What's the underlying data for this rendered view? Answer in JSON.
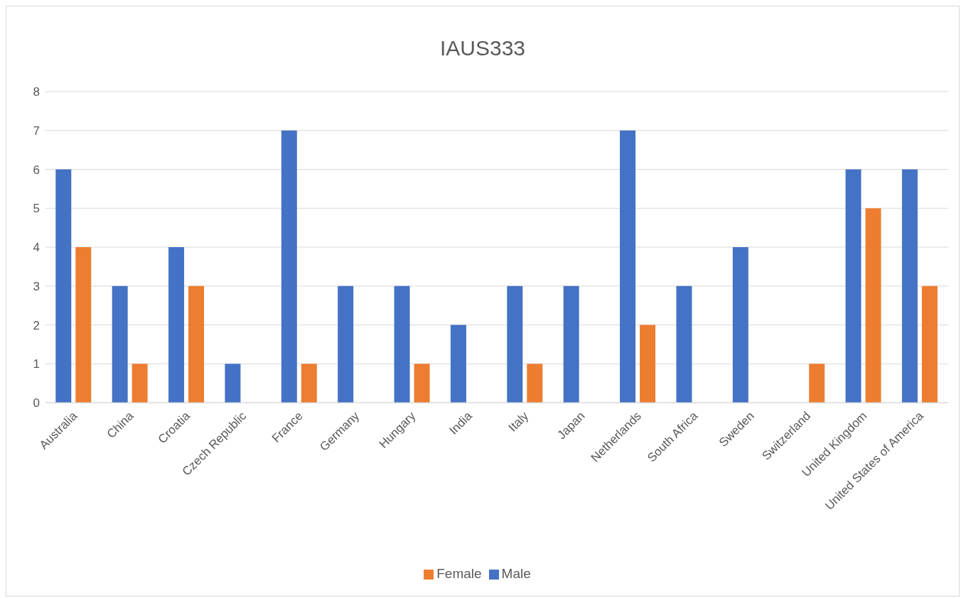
{
  "chart_data": {
    "type": "bar",
    "title": "IAUS333",
    "categories": [
      "Australia",
      "China",
      "Croatia",
      "Czech Republic",
      "France",
      "Germany",
      "Hungary",
      "India",
      "Italy",
      "Japan",
      "Netherlands",
      "South Africa",
      "Sweden",
      "Switzerland",
      "United Kingdom",
      "United States of America"
    ],
    "series": [
      {
        "name": "Male",
        "color": "#4472c4",
        "values": [
          6,
          3,
          4,
          1,
          7,
          3,
          3,
          2,
          3,
          3,
          7,
          3,
          4,
          0,
          6,
          6
        ]
      },
      {
        "name": "Female",
        "color": "#ed7d31",
        "values": [
          4,
          1,
          3,
          0,
          1,
          0,
          1,
          0,
          1,
          0,
          2,
          0,
          0,
          1,
          5,
          3
        ]
      }
    ],
    "ylim": [
      0,
      8
    ],
    "yticks": [
      0,
      1,
      2,
      3,
      4,
      5,
      6,
      7,
      8
    ],
    "grid": "y",
    "legend": "bottom"
  }
}
